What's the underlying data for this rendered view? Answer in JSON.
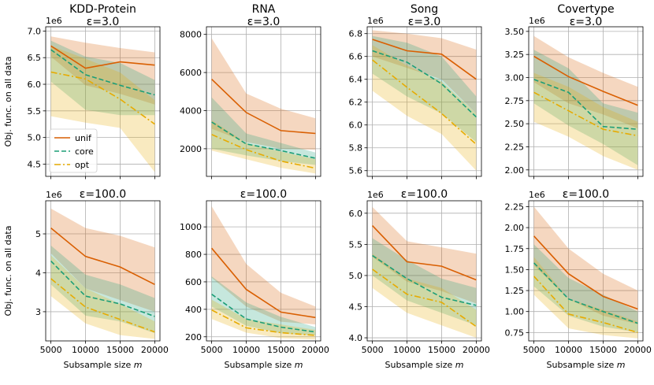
{
  "legend": [
    {
      "key": "unif",
      "label": "unif",
      "color": "#d95f02",
      "dash": ""
    },
    {
      "key": "core",
      "label": "core",
      "color": "#1b9e77",
      "dash": "6,3"
    },
    {
      "key": "opt",
      "label": "opt",
      "color": "#e6ab02",
      "dash": "8,3,2,3"
    }
  ],
  "ylabel": "Obj. func. on all data",
  "xlabel_text": "Subsample size ",
  "xlabel_var": "m",
  "x_ticks": [
    "5000",
    "10000",
    "15000",
    "20000"
  ],
  "chart_data": [
    {
      "type": "line",
      "title": "KDD-Protein",
      "subtitle": "ε=3.0",
      "multiplier": "1e6",
      "x": [
        5000,
        10000,
        15000,
        20000
      ],
      "ylim": [
        4.27,
        7.08
      ],
      "yticks": [
        4.5,
        5.0,
        5.5,
        6.0,
        6.5,
        7.0
      ],
      "ytick_labels": [
        "4.5",
        "5.0",
        "5.5",
        "6.0",
        "6.5",
        "7.0"
      ],
      "series": [
        {
          "name": "unif",
          "values": [
            6.72,
            6.3,
            6.42,
            6.36
          ],
          "lower": [
            6.52,
            5.98,
            5.82,
            5.62
          ],
          "upper": [
            6.9,
            6.78,
            6.68,
            6.6
          ]
        },
        {
          "name": "core",
          "values": [
            6.65,
            6.18,
            5.98,
            5.8
          ],
          "lower": [
            6.05,
            5.52,
            5.42,
            5.42
          ],
          "upper": [
            6.82,
            6.52,
            6.4,
            6.08
          ]
        },
        {
          "name": "opt",
          "values": [
            6.23,
            6.1,
            5.72,
            5.25
          ],
          "lower": [
            5.4,
            5.28,
            5.18,
            4.35
          ],
          "upper": [
            6.72,
            6.48,
            6.22,
            5.7
          ]
        }
      ]
    },
    {
      "type": "line",
      "title": "RNA",
      "subtitle": "ε=3.0",
      "multiplier": "",
      "x": [
        5000,
        10000,
        15000,
        20000
      ],
      "ylim": [
        550,
        8400
      ],
      "yticks": [
        2000,
        4000,
        6000,
        8000
      ],
      "ytick_labels": [
        "2000",
        "4000",
        "6000",
        "8000"
      ],
      "series": [
        {
          "name": "unif",
          "values": [
            5650,
            3900,
            2950,
            2800
          ],
          "lower": [
            3050,
            2350,
            2000,
            1950
          ],
          "upper": [
            7800,
            4900,
            4100,
            3600
          ]
        },
        {
          "name": "core",
          "values": [
            3400,
            2250,
            1900,
            1500
          ],
          "lower": [
            2000,
            1650,
            1350,
            1150
          ],
          "upper": [
            4700,
            2800,
            2300,
            1800
          ]
        },
        {
          "name": "opt",
          "values": [
            2750,
            1950,
            1350,
            980
          ],
          "lower": [
            1900,
            1450,
            1000,
            700
          ],
          "upper": [
            3500,
            2300,
            1850,
            1450
          ]
        }
      ]
    },
    {
      "type": "line",
      "title": "Song",
      "subtitle": "ε=3.0",
      "multiplier": "1e6",
      "x": [
        5000,
        10000,
        15000,
        20000
      ],
      "ylim": [
        5.55,
        6.86
      ],
      "yticks": [
        5.6,
        5.8,
        6.0,
        6.2,
        6.4,
        6.6,
        6.8
      ],
      "ytick_labels": [
        "5.6",
        "5.8",
        "6.0",
        "6.2",
        "6.4",
        "6.6",
        "6.8"
      ],
      "series": [
        {
          "name": "unif",
          "values": [
            6.75,
            6.65,
            6.62,
            6.4
          ],
          "lower": [
            6.6,
            6.5,
            6.4,
            6.1
          ],
          "upper": [
            6.83,
            6.8,
            6.76,
            6.66
          ]
        },
        {
          "name": "core",
          "values": [
            6.65,
            6.55,
            6.36,
            6.07
          ],
          "lower": [
            6.45,
            6.25,
            6.1,
            5.85
          ],
          "upper": [
            6.78,
            6.72,
            6.6,
            6.25
          ]
        },
        {
          "name": "opt",
          "values": [
            6.57,
            6.33,
            6.1,
            5.83
          ],
          "lower": [
            6.3,
            6.08,
            5.92,
            5.6
          ],
          "upper": [
            6.7,
            6.52,
            6.38,
            6.1
          ]
        }
      ]
    },
    {
      "type": "line",
      "title": "Covertype",
      "subtitle": "ε=3.0",
      "multiplier": "1e6",
      "x": [
        5000,
        10000,
        15000,
        20000
      ],
      "ylim": [
        1.93,
        3.55
      ],
      "yticks": [
        2.0,
        2.25,
        2.5,
        2.75,
        3.0,
        3.25,
        3.5
      ],
      "ytick_labels": [
        "2.00",
        "2.25",
        "2.50",
        "2.75",
        "3.00",
        "3.25",
        "3.50"
      ],
      "series": [
        {
          "name": "unif",
          "values": [
            3.23,
            3.01,
            2.85,
            2.7
          ],
          "lower": [
            2.95,
            2.72,
            2.6,
            2.45
          ],
          "upper": [
            3.45,
            3.22,
            3.05,
            2.9
          ]
        },
        {
          "name": "core",
          "values": [
            2.98,
            2.84,
            2.47,
            2.44
          ],
          "lower": [
            2.72,
            2.48,
            2.28,
            2.05
          ],
          "upper": [
            3.3,
            3.1,
            2.72,
            2.62
          ]
        },
        {
          "name": "opt",
          "values": [
            2.84,
            2.64,
            2.44,
            2.37
          ],
          "lower": [
            2.52,
            2.36,
            2.15,
            2.0
          ],
          "upper": [
            3.05,
            2.9,
            2.68,
            2.52
          ]
        }
      ]
    },
    {
      "type": "line",
      "title": "",
      "subtitle": "ε=100.0",
      "multiplier": "1e6",
      "x": [
        5000,
        10000,
        15000,
        20000
      ],
      "ylim": [
        2.25,
        5.85
      ],
      "yticks": [
        3,
        4,
        5
      ],
      "ytick_labels": [
        "3",
        "4",
        "5"
      ],
      "series": [
        {
          "name": "unif",
          "values": [
            5.15,
            4.42,
            4.15,
            3.7
          ],
          "lower": [
            4.5,
            3.6,
            3.3,
            3.0
          ],
          "upper": [
            5.65,
            5.15,
            4.95,
            4.65
          ]
        },
        {
          "name": "core",
          "values": [
            4.3,
            3.4,
            3.2,
            2.88
          ],
          "lower": [
            3.7,
            2.9,
            2.75,
            2.45
          ],
          "upper": [
            4.7,
            3.95,
            3.7,
            3.35
          ]
        },
        {
          "name": "opt",
          "values": [
            3.85,
            3.12,
            2.8,
            2.48
          ],
          "lower": [
            3.4,
            2.7,
            2.4,
            2.3
          ],
          "upper": [
            4.45,
            3.6,
            3.2,
            2.75
          ]
        }
      ]
    },
    {
      "type": "line",
      "title": "",
      "subtitle": "ε=100.0",
      "multiplier": "",
      "x": [
        5000,
        10000,
        15000,
        20000
      ],
      "ylim": [
        170,
        1190
      ],
      "yticks": [
        200,
        400,
        600,
        800,
        1000
      ],
      "ytick_labels": [
        "200",
        "400",
        "600",
        "800",
        "1000"
      ],
      "series": [
        {
          "name": "unif",
          "values": [
            845,
            545,
            380,
            340
          ],
          "lower": [
            630,
            420,
            310,
            290
          ],
          "upper": [
            1150,
            730,
            520,
            420
          ]
        },
        {
          "name": "core",
          "values": [
            510,
            330,
            270,
            235
          ],
          "lower": [
            420,
            280,
            225,
            210
          ],
          "upper": [
            640,
            450,
            345,
            270
          ]
        },
        {
          "name": "opt",
          "values": [
            395,
            265,
            230,
            210
          ],
          "lower": [
            330,
            230,
            190,
            180
          ],
          "upper": [
            470,
            330,
            290,
            250
          ]
        }
      ]
    },
    {
      "type": "line",
      "title": "",
      "subtitle": "ε=100.0",
      "multiplier": "1e6",
      "x": [
        5000,
        10000,
        15000,
        20000
      ],
      "ylim": [
        3.95,
        6.2
      ],
      "yticks": [
        4.0,
        4.5,
        5.0,
        5.5,
        6.0
      ],
      "ytick_labels": [
        "4.0",
        "4.5",
        "5.0",
        "5.5",
        "6.0"
      ],
      "series": [
        {
          "name": "unif",
          "values": [
            5.8,
            5.22,
            5.15,
            4.93
          ],
          "lower": [
            5.3,
            4.9,
            4.75,
            4.55
          ],
          "upper": [
            6.1,
            5.55,
            5.45,
            5.35
          ]
        },
        {
          "name": "core",
          "values": [
            5.32,
            4.95,
            4.65,
            4.52
          ],
          "lower": [
            5.0,
            4.6,
            4.4,
            4.2
          ],
          "upper": [
            5.6,
            5.25,
            4.95,
            4.8
          ]
        },
        {
          "name": "opt",
          "values": [
            5.1,
            4.7,
            4.57,
            4.18
          ],
          "lower": [
            4.8,
            4.4,
            4.2,
            4.0
          ],
          "upper": [
            5.35,
            4.95,
            4.8,
            4.45
          ]
        }
      ]
    },
    {
      "type": "line",
      "title": "",
      "subtitle": "ε=100.0",
      "multiplier": "1e6",
      "x": [
        5000,
        10000,
        15000,
        20000
      ],
      "ylim": [
        0.65,
        2.32
      ],
      "yticks": [
        0.75,
        1.0,
        1.25,
        1.5,
        1.75,
        2.0,
        2.25
      ],
      "ytick_labels": [
        "0.75",
        "1.00",
        "1.25",
        "1.50",
        "1.75",
        "2.00",
        "2.25"
      ],
      "series": [
        {
          "name": "unif",
          "values": [
            1.9,
            1.45,
            1.18,
            1.03
          ],
          "lower": [
            1.55,
            1.15,
            0.95,
            0.85
          ],
          "upper": [
            2.25,
            1.75,
            1.45,
            1.25
          ]
        },
        {
          "name": "core",
          "values": [
            1.58,
            1.15,
            1.0,
            0.86
          ],
          "lower": [
            1.3,
            0.95,
            0.82,
            0.75
          ],
          "upper": [
            1.8,
            1.4,
            1.2,
            1.0
          ]
        },
        {
          "name": "opt",
          "values": [
            1.42,
            0.97,
            0.87,
            0.75
          ],
          "lower": [
            1.2,
            0.8,
            0.72,
            0.68
          ],
          "upper": [
            1.65,
            1.15,
            1.02,
            0.88
          ]
        }
      ]
    }
  ]
}
